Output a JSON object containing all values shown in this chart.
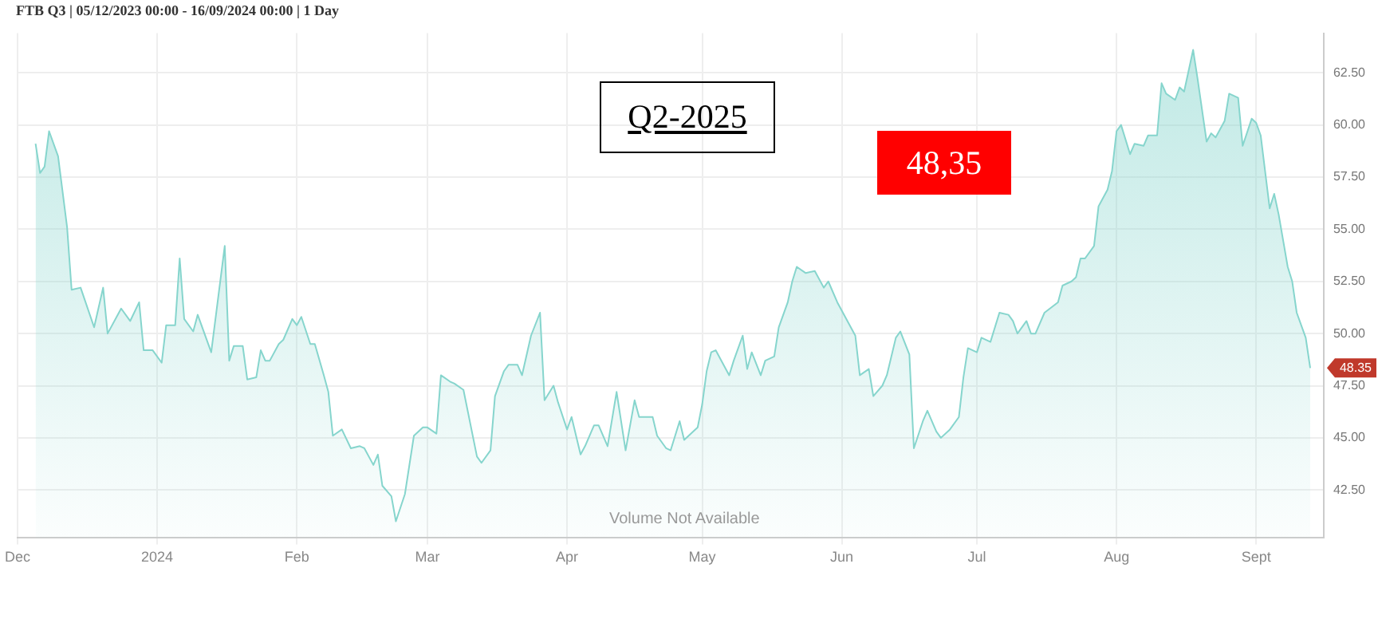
{
  "chart_data": {
    "type": "area",
    "title": "FTB Q3 | 05/12/2023 00:00 - 16/09/2024 00:00 | 1 Day",
    "x": [
      "2023-12-05",
      "2023-12-06",
      "2023-12-07",
      "2023-12-08",
      "2023-12-10",
      "2023-12-12",
      "2023-12-13",
      "2023-12-15",
      "2023-12-18",
      "2023-12-20",
      "2023-12-21",
      "2023-12-24",
      "2023-12-26",
      "2023-12-28",
      "2023-12-29",
      "2023-12-31",
      "2024-01-02",
      "2024-01-03",
      "2024-01-05",
      "2024-01-06",
      "2024-01-07",
      "2024-01-09",
      "2024-01-10",
      "2024-01-13",
      "2024-01-16",
      "2024-01-17",
      "2024-01-18",
      "2024-01-20",
      "2024-01-21",
      "2024-01-23",
      "2024-01-24",
      "2024-01-25",
      "2024-01-26",
      "2024-01-28",
      "2024-01-29",
      "2024-01-31",
      "2024-02-01",
      "2024-02-02",
      "2024-02-04",
      "2024-02-05",
      "2024-02-07",
      "2024-02-08",
      "2024-02-09",
      "2024-02-11",
      "2024-02-13",
      "2024-02-15",
      "2024-02-16",
      "2024-02-18",
      "2024-02-19",
      "2024-02-20",
      "2024-02-22",
      "2024-02-23",
      "2024-02-25",
      "2024-02-27",
      "2024-02-29",
      "2024-03-01",
      "2024-03-03",
      "2024-03-04",
      "2024-03-06",
      "2024-03-07",
      "2024-03-09",
      "2024-03-12",
      "2024-03-13",
      "2024-03-15",
      "2024-03-16",
      "2024-03-18",
      "2024-03-19",
      "2024-03-21",
      "2024-03-22",
      "2024-03-24",
      "2024-03-26",
      "2024-03-27",
      "2024-03-29",
      "2024-03-30",
      "2024-04-01",
      "2024-04-02",
      "2024-04-04",
      "2024-04-05",
      "2024-04-07",
      "2024-04-08",
      "2024-04-10",
      "2024-04-12",
      "2024-04-14",
      "2024-04-16",
      "2024-04-17",
      "2024-04-20",
      "2024-04-21",
      "2024-04-23",
      "2024-04-24",
      "2024-04-26",
      "2024-04-27",
      "2024-04-30",
      "2024-05-01",
      "2024-05-02",
      "2024-05-03",
      "2024-05-04",
      "2024-05-07",
      "2024-05-08",
      "2024-05-10",
      "2024-05-11",
      "2024-05-12",
      "2024-05-14",
      "2024-05-15",
      "2024-05-17",
      "2024-05-18",
      "2024-05-20",
      "2024-05-21",
      "2024-05-22",
      "2024-05-24",
      "2024-05-26",
      "2024-05-28",
      "2024-05-29",
      "2024-05-31",
      "2024-06-04",
      "2024-06-05",
      "2024-06-07",
      "2024-06-08",
      "2024-06-10",
      "2024-06-11",
      "2024-06-13",
      "2024-06-14",
      "2024-06-16",
      "2024-06-17",
      "2024-06-19",
      "2024-06-20",
      "2024-06-22",
      "2024-06-23",
      "2024-06-25",
      "2024-06-27",
      "2024-06-28",
      "2024-06-29",
      "2024-07-01",
      "2024-07-02",
      "2024-07-04",
      "2024-07-06",
      "2024-07-08",
      "2024-07-09",
      "2024-07-10",
      "2024-07-12",
      "2024-07-13",
      "2024-07-14",
      "2024-07-16",
      "2024-07-19",
      "2024-07-20",
      "2024-07-22",
      "2024-07-23",
      "2024-07-24",
      "2024-07-25",
      "2024-07-27",
      "2024-07-28",
      "2024-07-30",
      "2024-07-31",
      "2024-08-01",
      "2024-08-02",
      "2024-08-04",
      "2024-08-05",
      "2024-08-07",
      "2024-08-08",
      "2024-08-10",
      "2024-08-11",
      "2024-08-12",
      "2024-08-14",
      "2024-08-15",
      "2024-08-16",
      "2024-08-18",
      "2024-08-19",
      "2024-08-21",
      "2024-08-22",
      "2024-08-23",
      "2024-08-25",
      "2024-08-26",
      "2024-08-28",
      "2024-08-29",
      "2024-08-31",
      "2024-09-01",
      "2024-09-02",
      "2024-09-04",
      "2024-09-05",
      "2024-09-06",
      "2024-09-08",
      "2024-09-09",
      "2024-09-10",
      "2024-09-12",
      "2024-09-13"
    ],
    "series": [
      {
        "color": "#86d5cd",
        "values": [
          59.1,
          57.7,
          58.0,
          59.7,
          58.5,
          55.1,
          52.1,
          52.2,
          50.3,
          52.2,
          50.0,
          51.2,
          50.6,
          51.5,
          49.2,
          49.2,
          48.6,
          50.4,
          50.4,
          53.6,
          50.7,
          50.1,
          50.9,
          49.1,
          54.2,
          48.7,
          49.4,
          49.4,
          47.8,
          47.9,
          49.2,
          48.7,
          48.7,
          49.5,
          49.7,
          50.7,
          50.4,
          50.8,
          49.5,
          49.5,
          48.0,
          47.2,
          45.1,
          45.4,
          44.5,
          44.6,
          44.5,
          43.7,
          44.2,
          42.7,
          42.2,
          41.0,
          42.3,
          45.1,
          45.5,
          45.5,
          45.2,
          48.0,
          47.7,
          47.6,
          47.3,
          44.1,
          43.8,
          44.4,
          47.0,
          48.2,
          48.5,
          48.5,
          48.0,
          49.9,
          51.0,
          46.8,
          47.5,
          46.7,
          45.4,
          46.0,
          44.2,
          44.6,
          45.6,
          45.6,
          44.6,
          47.2,
          44.4,
          46.8,
          46.0,
          46.0,
          45.1,
          44.5,
          44.4,
          45.8,
          44.9,
          45.5,
          46.6,
          48.2,
          49.1,
          49.2,
          48.0,
          48.7,
          49.9,
          48.3,
          49.1,
          48.0,
          48.7,
          48.9,
          50.3,
          51.5,
          52.5,
          53.2,
          52.9,
          53.0,
          52.2,
          52.5,
          51.5,
          49.9,
          48.0,
          48.3,
          47.0,
          47.5,
          48.0,
          49.8,
          50.1,
          49.0,
          44.5,
          45.8,
          46.3,
          45.3,
          45.0,
          45.4,
          46.0,
          47.9,
          49.3,
          49.1,
          49.8,
          49.6,
          51.0,
          50.9,
          50.6,
          50.0,
          50.6,
          50.0,
          50.0,
          51.0,
          51.5,
          52.3,
          52.5,
          52.7,
          53.6,
          53.6,
          54.2,
          56.1,
          56.9,
          57.8,
          59.7,
          60.0,
          58.6,
          59.1,
          59.0,
          59.5,
          59.5,
          62.0,
          61.5,
          61.2,
          61.8,
          61.6,
          63.6,
          62.2,
          59.2,
          59.6,
          59.4,
          60.2,
          61.5,
          61.3,
          59.0,
          60.3,
          60.1,
          59.5,
          56.0,
          56.7,
          55.7,
          53.2,
          52.5,
          51.0,
          49.8,
          48.35
        ]
      }
    ],
    "xlim": [
      "2023-12-01",
      "2024-09-16"
    ],
    "xticks": [
      {
        "value": "2023-12-01",
        "label": "Dec"
      },
      {
        "value": "2024-01-01",
        "label": "2024"
      },
      {
        "value": "2024-02-01",
        "label": "Feb"
      },
      {
        "value": "2024-03-01",
        "label": "Mar"
      },
      {
        "value": "2024-04-01",
        "label": "Apr"
      },
      {
        "value": "2024-05-01",
        "label": "May"
      },
      {
        "value": "2024-06-01",
        "label": "Jun"
      },
      {
        "value": "2024-07-01",
        "label": "Jul"
      },
      {
        "value": "2024-08-01",
        "label": "Aug"
      },
      {
        "value": "2024-09-01",
        "label": "Sept"
      }
    ],
    "ylim": [
      40.2,
      64.4
    ],
    "yticks": [
      {
        "value": 42.5,
        "label": "42.50"
      },
      {
        "value": 45,
        "label": "45.00"
      },
      {
        "value": 47.5,
        "label": "47.50"
      },
      {
        "value": 50,
        "label": "50.00"
      },
      {
        "value": 52.5,
        "label": "52.50"
      },
      {
        "value": 55,
        "label": "55.00"
      },
      {
        "value": 57.5,
        "label": "57.50"
      },
      {
        "value": 60,
        "label": "60.00"
      },
      {
        "value": 62.5,
        "label": "62.50"
      }
    ],
    "grid": true,
    "annotations": [
      "Q2-2025",
      "48,35",
      "Volume Not Available",
      "48.35"
    ]
  }
}
